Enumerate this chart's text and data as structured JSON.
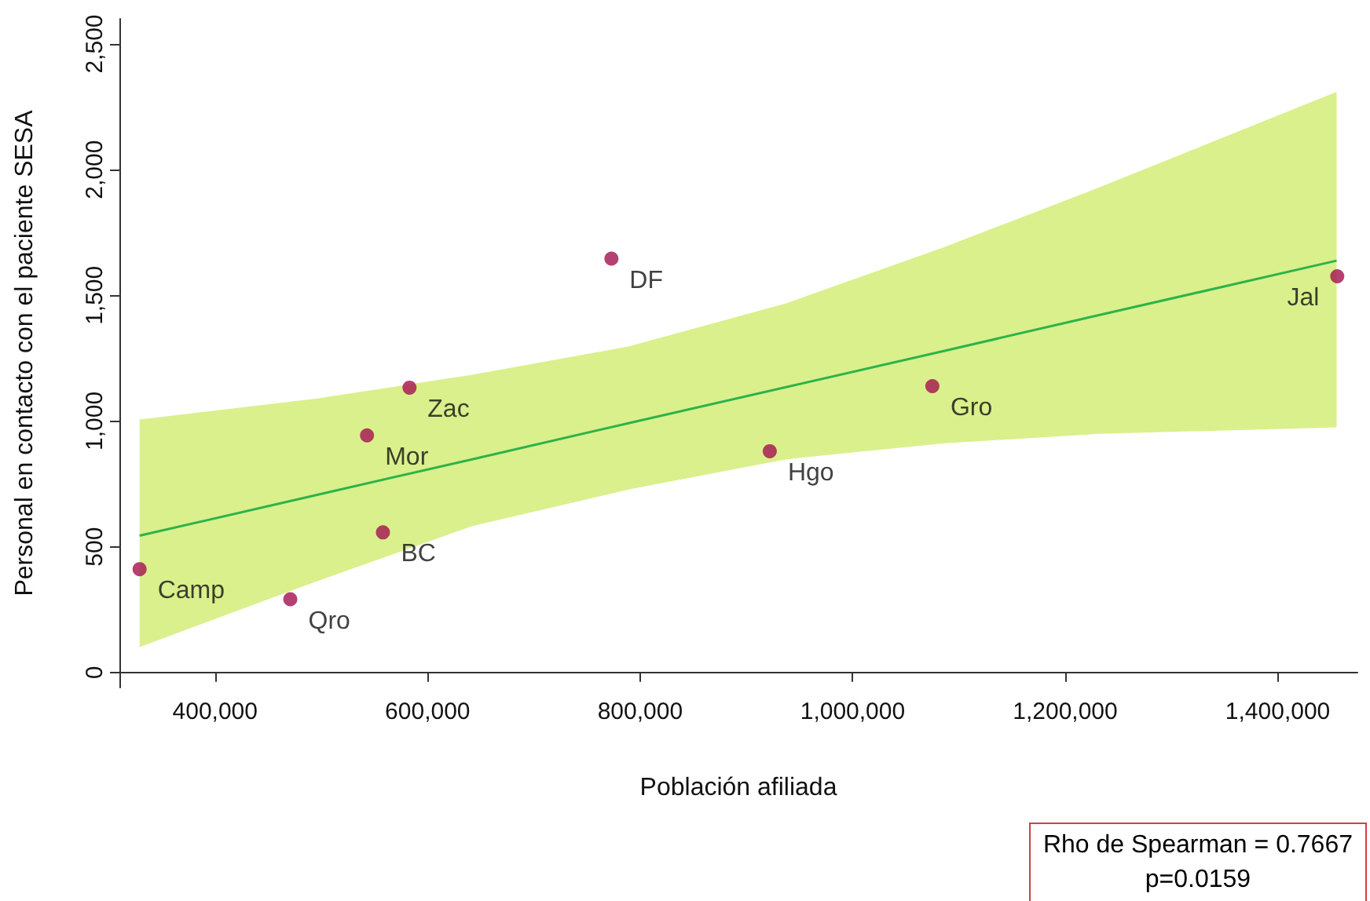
{
  "chart_data": {
    "type": "scatter",
    "xlabel": "Población afiliada",
    "ylabel": "Personal en contacto con el paciente SESA",
    "xlim": [
      310000,
      1475000
    ],
    "ylim": [
      -60,
      2600
    ],
    "xticks": [
      {
        "value": 400000,
        "label": "400,000"
      },
      {
        "value": 600000,
        "label": "600,000"
      },
      {
        "value": 800000,
        "label": "800,000"
      },
      {
        "value": 1000000,
        "label": "1,000,000"
      },
      {
        "value": 1200000,
        "label": "1,200,000"
      },
      {
        "value": 1400000,
        "label": "1,400,000"
      }
    ],
    "yticks": [
      0,
      500,
      {
        "value": 1000,
        "label": "1,000"
      },
      {
        "value": 1500,
        "label": "1,500"
      },
      {
        "value": 2000,
        "label": "2,000"
      },
      {
        "value": 2500,
        "label": "2,500"
      }
    ],
    "grid": false,
    "marker": "circle",
    "series": [
      {
        "type": "line",
        "marker": "none",
        "color": "#2db34a",
        "x": [
          329000,
          494500,
          642000,
          789700,
          937300,
          1084900,
          1232500,
          1455400
        ],
        "values": [
          544,
          705,
          848,
          992,
          1135,
          1278,
          1422,
          1638
        ],
        "lower": [
          101,
          361,
          582,
          728,
          848,
          911,
          949,
          975
        ],
        "upper": [
          1006,
          1089,
          1184,
          1297,
          1468,
          1690,
          1930,
          2310
        ]
      },
      {
        "type": "scatter",
        "color": "#a3114f",
        "x": [
          329000,
          470800,
          543000,
          558000,
          583000,
          773000,
          922000,
          1075000,
          1456000
        ],
        "values": [
          411,
          291,
          943,
          557,
          1133,
          1646,
          880,
          1139,
          1576
        ],
        "value_labels": [
          "Camp",
          "Qro",
          "Mor",
          "BC",
          "Zac",
          "DF",
          "Hgo",
          "Gro",
          "Jal"
        ]
      }
    ],
    "annotations": [
      "Rho de Spearman = 0.7667",
      "p=0.0159"
    ]
  }
}
